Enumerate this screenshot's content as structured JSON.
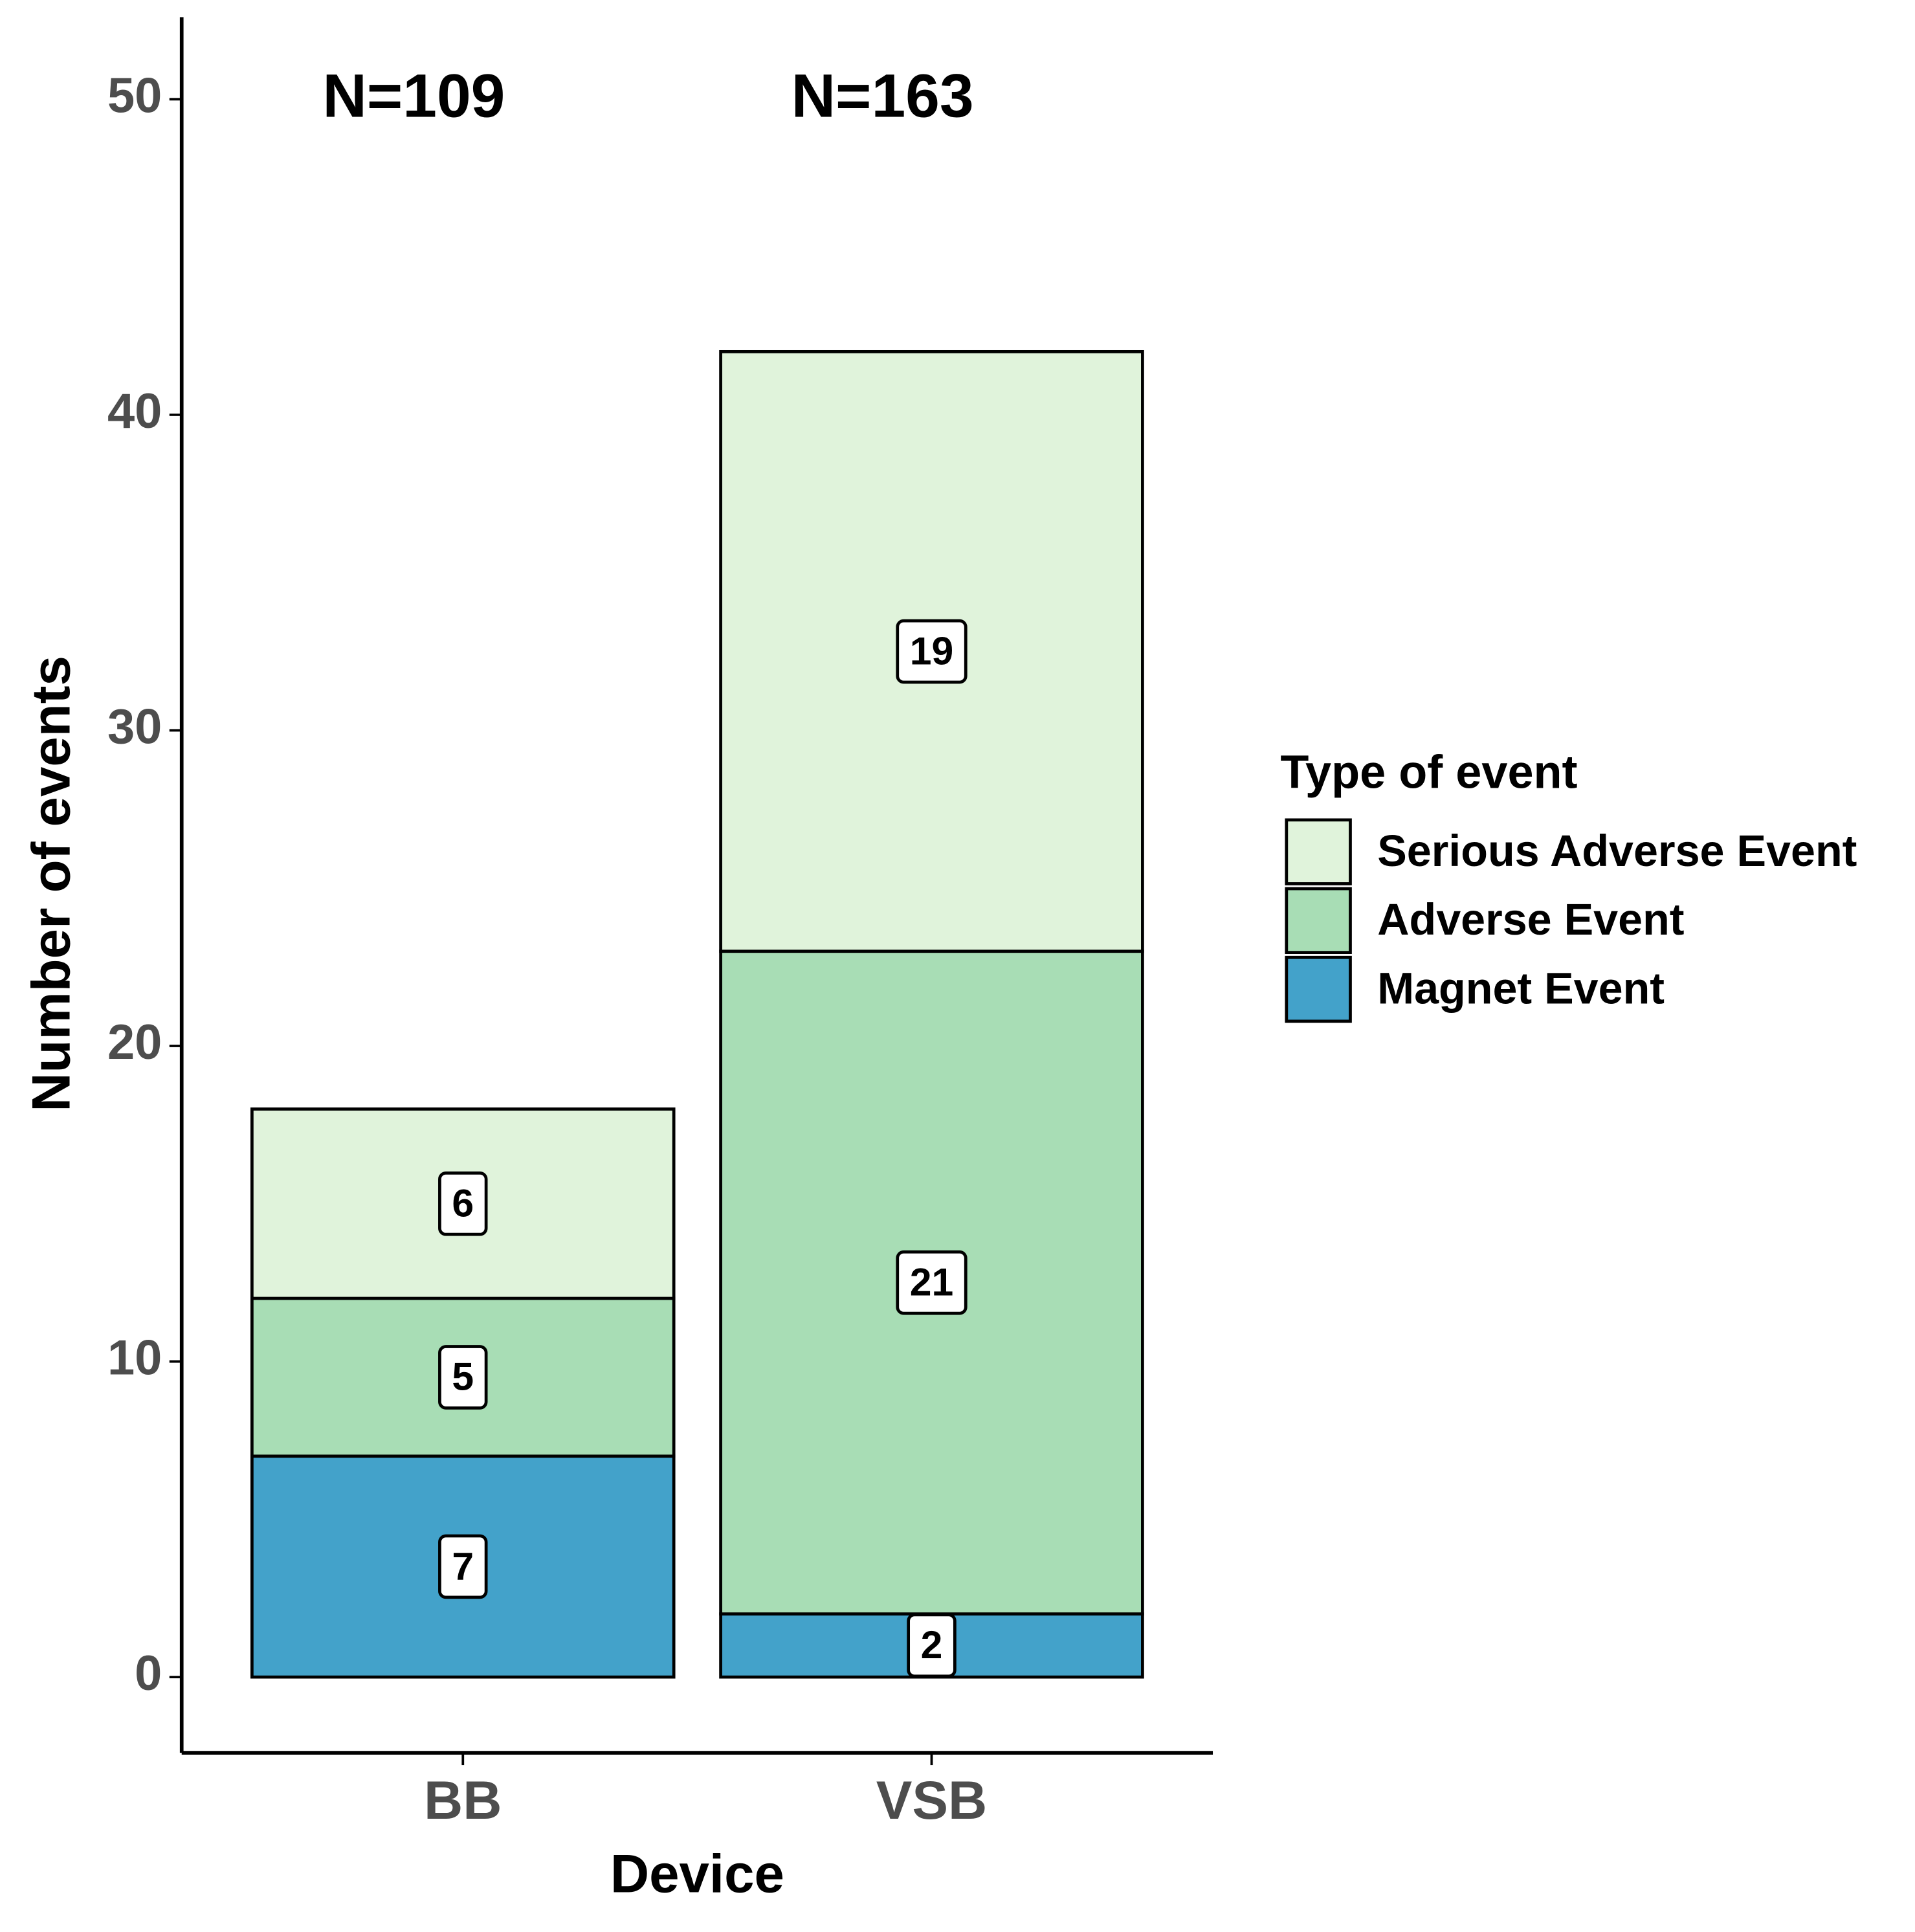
{
  "chart_data": {
    "type": "stacked_bar",
    "categories": [
      "BB",
      "VSB"
    ],
    "annotations": [
      "N=109",
      "N=163"
    ],
    "series": [
      {
        "name": "Magnet Event",
        "color": "#43a2ca",
        "values": [
          7,
          2
        ]
      },
      {
        "name": "Adverse Event",
        "color": "#a8ddb5",
        "values": [
          5,
          21
        ]
      },
      {
        "name": "Serious Adverse Event",
        "color": "#e0f3db",
        "values": [
          6,
          19
        ]
      }
    ],
    "ylim": [
      -2.4,
      52.6
    ],
    "yticks": [
      0,
      10,
      20,
      30,
      40,
      50
    ],
    "ylabel": "Number of events",
    "xlabel": "Device",
    "legend_title": "Type of event",
    "legend": "right"
  }
}
